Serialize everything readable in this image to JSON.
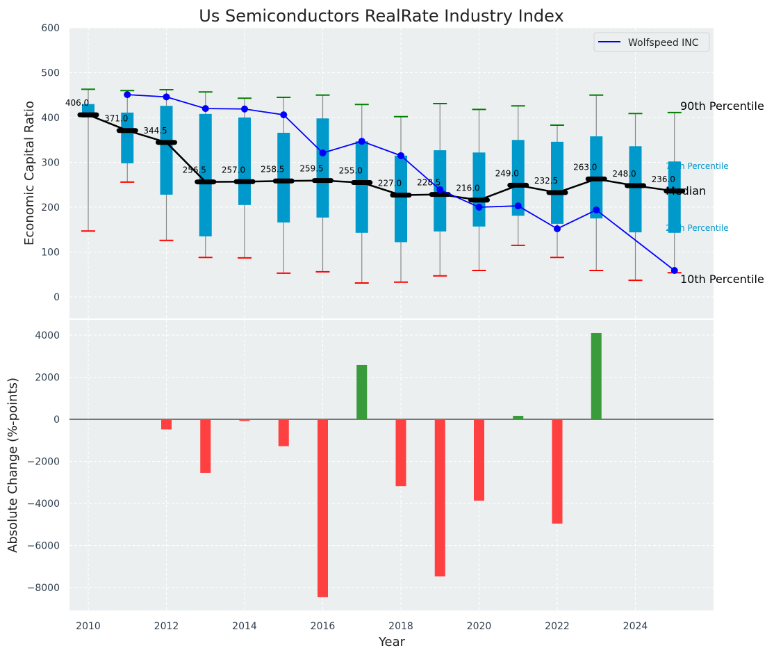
{
  "chart_data": [
    {
      "type": "box-range",
      "title": "Us Semiconductors RealRate Industry Index",
      "ylabel": "Economic Capital Ratio",
      "ylim": [
        -48,
        600
      ],
      "xlim": [
        2009.52,
        2026.0
      ],
      "yticks": [
        0,
        100,
        200,
        300,
        400,
        500,
        600
      ],
      "grid": true,
      "legend": {
        "position": "top-right",
        "entries": [
          "Wolfspeed INC"
        ]
      },
      "colors": {
        "box": "#0099cc",
        "median": "#000000",
        "p90": "#008000",
        "p10": "#ff0000",
        "series": "#0000ff",
        "background": "#eceff0"
      },
      "years": [
        2010,
        2011,
        2012,
        2013,
        2014,
        2015,
        2016,
        2017,
        2018,
        2019,
        2020,
        2021,
        2022,
        2023,
        2024,
        2025
      ],
      "p90": [
        463,
        460,
        462,
        457,
        443,
        445,
        450,
        429,
        402,
        431,
        418,
        426,
        383,
        450,
        409,
        411
      ],
      "p75": [
        430,
        411,
        426,
        408,
        400,
        366,
        398,
        347,
        315,
        327,
        322,
        350,
        346,
        358,
        336,
        302
      ],
      "median": [
        406.0,
        371.0,
        344.5,
        256.5,
        257.0,
        258.5,
        259.5,
        255.0,
        227.0,
        228.5,
        216.0,
        249.0,
        232.5,
        263.0,
        248.0,
        236.0
      ],
      "median_labels": [
        "406.0",
        "371.0",
        "344.5",
        "256.5",
        "257.0",
        "258.5",
        "259.5",
        "255.0",
        "227.0",
        "228.5",
        "216.0",
        "249.0",
        "232.5",
        "263.0",
        "248.0",
        "236.0"
      ],
      "p25": [
        400,
        298,
        228,
        135,
        205,
        166,
        177,
        143,
        122,
        146,
        157,
        181,
        163,
        175,
        144,
        143
      ],
      "p10": [
        147,
        256,
        126,
        88,
        87,
        53,
        56,
        31,
        33,
        47,
        59,
        115,
        88,
        59,
        37,
        54
      ],
      "series": [
        {
          "name": "Wolfspeed INC",
          "values": [
            null,
            451,
            446,
            420,
            419,
            406,
            321,
            347,
            315,
            239,
            200,
            203,
            152,
            194,
            null,
            59
          ]
        }
      ],
      "annotations": {
        "p90": "90th Percentile",
        "p75": "75th Percentile",
        "median": "Median",
        "p25": "25th Percentile",
        "p10": "10th Percentile"
      }
    },
    {
      "type": "bar",
      "xlabel": "Year",
      "ylabel": "Absolute Change (%-points)",
      "ylim": [
        -9091,
        4727
      ],
      "yticks": [
        -8000,
        -6000,
        -4000,
        -2000,
        0,
        2000,
        4000
      ],
      "ytick_labels": [
        "−8000",
        "−6000",
        "−4000",
        "−2000",
        "0",
        "2000",
        "4000"
      ],
      "xticks": [
        2010,
        2012,
        2014,
        2016,
        2018,
        2020,
        2022,
        2024
      ],
      "colors": {
        "positive": "#3a9b3a",
        "negative": "#ff4040"
      },
      "categories": [
        2010,
        2011,
        2012,
        2013,
        2014,
        2015,
        2016,
        2017,
        2018,
        2019,
        2020,
        2021,
        2022,
        2023,
        2024,
        2025
      ],
      "values": [
        0,
        0,
        -480,
        -2545,
        -80,
        -1280,
        -8460,
        2580,
        -3180,
        -7470,
        -3870,
        165,
        -4960,
        4100,
        0,
        0
      ]
    }
  ]
}
